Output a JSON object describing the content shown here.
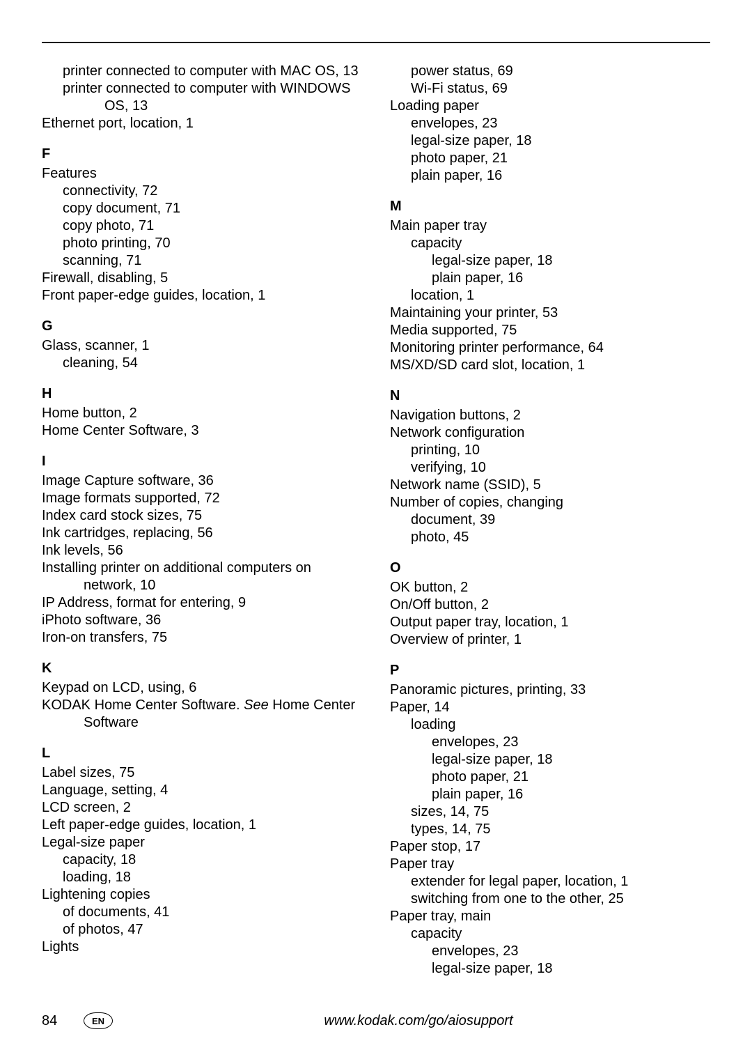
{
  "page_number": "84",
  "lang_badge": "EN",
  "footer_url": "www.kodak.com/go/aiosupport",
  "left": {
    "pre": [
      {
        "text": "printer connected to computer with MAC OS, 13",
        "indent": 1
      },
      {
        "text": "printer connected to computer with WINDOWS OS, 13",
        "indent": 1,
        "hang": true
      },
      {
        "text": "Ethernet port, location, 1",
        "indent": 0
      }
    ],
    "groups": [
      {
        "letter": "F",
        "lines": [
          {
            "text": "Features",
            "indent": 0
          },
          {
            "text": "connectivity, 72",
            "indent": 1
          },
          {
            "text": "copy document, 71",
            "indent": 1
          },
          {
            "text": "copy photo, 71",
            "indent": 1
          },
          {
            "text": "photo printing, 70",
            "indent": 1
          },
          {
            "text": "scanning, 71",
            "indent": 1
          },
          {
            "text": "Firewall, disabling, 5",
            "indent": 0
          },
          {
            "text": "Front paper-edge guides, location, 1",
            "indent": 0
          }
        ]
      },
      {
        "letter": "G",
        "lines": [
          {
            "text": "Glass, scanner, 1",
            "indent": 0
          },
          {
            "text": "cleaning, 54",
            "indent": 1
          }
        ]
      },
      {
        "letter": "H",
        "lines": [
          {
            "text": "Home button, 2",
            "indent": 0
          },
          {
            "text": "Home Center Software, 3",
            "indent": 0
          }
        ]
      },
      {
        "letter": "I",
        "lines": [
          {
            "text": "Image Capture software, 36",
            "indent": 0
          },
          {
            "text": "Image formats supported, 72",
            "indent": 0
          },
          {
            "text": "Index card stock sizes, 75",
            "indent": 0
          },
          {
            "text": "Ink cartridges, replacing, 56",
            "indent": 0
          },
          {
            "text": "Ink levels, 56",
            "indent": 0
          },
          {
            "text": "Installing printer on additional computers on network, 10",
            "indent": 0,
            "hang": true
          },
          {
            "text": "IP Address, format for entering, 9",
            "indent": 0
          },
          {
            "text": "iPhoto software, 36",
            "indent": 0
          },
          {
            "text": "Iron-on transfers, 75",
            "indent": 0
          }
        ]
      },
      {
        "letter": "K",
        "lines": [
          {
            "text": "Keypad on LCD, using, 6",
            "indent": 0
          },
          {
            "html": "KODAK Home Center Software. <span class=\"italic\">See</span> Home Center Software",
            "indent": 0,
            "hang": true
          }
        ]
      },
      {
        "letter": "L",
        "lines": [
          {
            "text": "Label sizes, 75",
            "indent": 0
          },
          {
            "text": "Language, setting, 4",
            "indent": 0
          },
          {
            "text": "LCD screen, 2",
            "indent": 0
          },
          {
            "text": "Left paper-edge guides, location, 1",
            "indent": 0
          },
          {
            "text": "Legal-size paper",
            "indent": 0
          },
          {
            "text": "capacity, 18",
            "indent": 1
          },
          {
            "text": "loading, 18",
            "indent": 1
          },
          {
            "text": "Lightening copies",
            "indent": 0
          },
          {
            "text": "of documents, 41",
            "indent": 1
          },
          {
            "text": "of photos, 47",
            "indent": 1
          },
          {
            "text": "Lights",
            "indent": 0
          }
        ]
      }
    ]
  },
  "right": {
    "pre": [
      {
        "text": "power status, 69",
        "indent": 1
      },
      {
        "text": "Wi-Fi status, 69",
        "indent": 1
      },
      {
        "text": "Loading paper",
        "indent": 0
      },
      {
        "text": "envelopes, 23",
        "indent": 1
      },
      {
        "text": "legal-size paper, 18",
        "indent": 1
      },
      {
        "text": "photo paper, 21",
        "indent": 1
      },
      {
        "text": "plain paper, 16",
        "indent": 1
      }
    ],
    "groups": [
      {
        "letter": "M",
        "lines": [
          {
            "text": "Main paper tray",
            "indent": 0
          },
          {
            "text": "capacity",
            "indent": 1
          },
          {
            "text": "legal-size paper, 18",
            "indent": 2
          },
          {
            "text": "plain paper, 16",
            "indent": 2
          },
          {
            "text": "location, 1",
            "indent": 1
          },
          {
            "text": "Maintaining your printer, 53",
            "indent": 0
          },
          {
            "text": "Media supported, 75",
            "indent": 0
          },
          {
            "text": "Monitoring printer performance, 64",
            "indent": 0
          },
          {
            "text": "MS/XD/SD card slot, location, 1",
            "indent": 0
          }
        ]
      },
      {
        "letter": "N",
        "lines": [
          {
            "text": "Navigation buttons, 2",
            "indent": 0
          },
          {
            "text": "Network configuration",
            "indent": 0
          },
          {
            "text": "printing, 10",
            "indent": 1
          },
          {
            "text": "verifying, 10",
            "indent": 1
          },
          {
            "text": "Network name (SSID), 5",
            "indent": 0
          },
          {
            "text": "Number of copies, changing",
            "indent": 0
          },
          {
            "text": "document, 39",
            "indent": 1
          },
          {
            "text": "photo, 45",
            "indent": 1
          }
        ]
      },
      {
        "letter": "O",
        "lines": [
          {
            "text": "OK button, 2",
            "indent": 0
          },
          {
            "text": "On/Off button, 2",
            "indent": 0
          },
          {
            "text": "Output paper tray, location, 1",
            "indent": 0
          },
          {
            "text": "Overview of printer, 1",
            "indent": 0
          }
        ]
      },
      {
        "letter": "P",
        "lines": [
          {
            "text": "Panoramic pictures, printing, 33",
            "indent": 0
          },
          {
            "text": "Paper, 14",
            "indent": 0
          },
          {
            "text": "loading",
            "indent": 1
          },
          {
            "text": "envelopes, 23",
            "indent": 2
          },
          {
            "text": "legal-size paper, 18",
            "indent": 2
          },
          {
            "text": "photo paper, 21",
            "indent": 2
          },
          {
            "text": "plain paper, 16",
            "indent": 2
          },
          {
            "text": "sizes, 14, 75",
            "indent": 1
          },
          {
            "text": "types, 14, 75",
            "indent": 1
          },
          {
            "text": "Paper stop, 17",
            "indent": 0
          },
          {
            "text": "Paper tray",
            "indent": 0
          },
          {
            "text": "extender for legal paper, location, 1",
            "indent": 1
          },
          {
            "text": "switching from one to the other, 25",
            "indent": 1
          },
          {
            "text": "Paper tray, main",
            "indent": 0
          },
          {
            "text": "capacity",
            "indent": 1
          },
          {
            "text": "envelopes, 23",
            "indent": 2
          },
          {
            "text": "legal-size paper, 18",
            "indent": 2
          }
        ]
      }
    ]
  }
}
